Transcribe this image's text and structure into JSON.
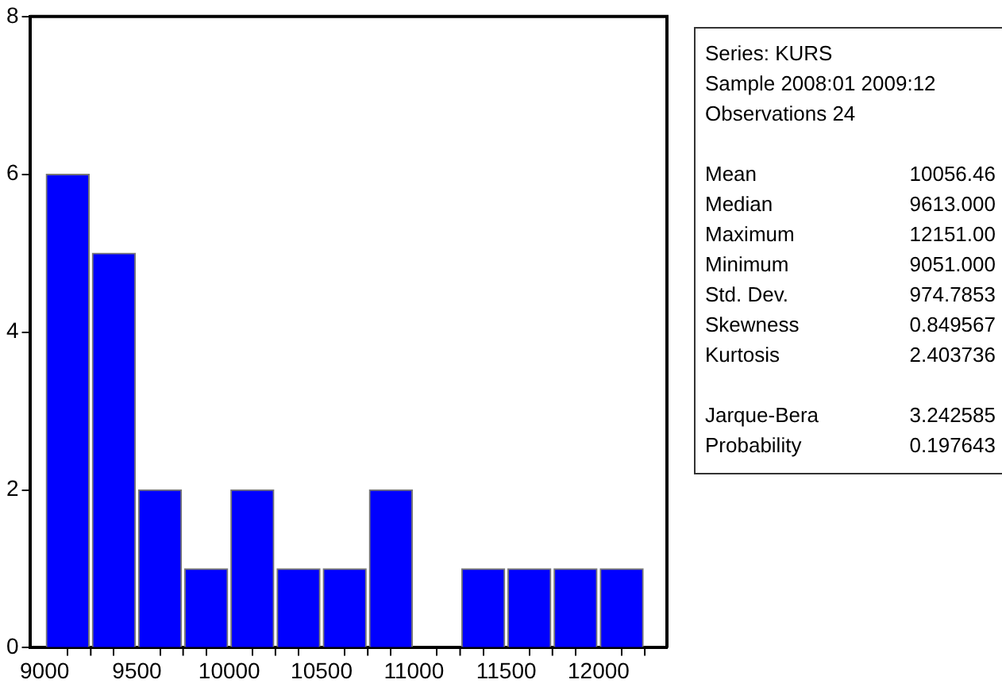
{
  "chart_data": {
    "type": "histogram",
    "bins": [
      9000,
      9250,
      9500,
      9750,
      10000,
      10250,
      10500,
      10750,
      11000,
      11250,
      11500,
      11750,
      12000,
      12250
    ],
    "values": [
      6,
      5,
      2,
      1,
      2,
      1,
      1,
      2,
      0,
      1,
      1,
      1,
      1
    ],
    "color": "#0000ff",
    "xlim": [
      8920,
      12370
    ],
    "xticks": [
      9000,
      {
        "value": 9250,
        "label": null
      },
      9500,
      {
        "value": 9750,
        "label": null
      },
      10000,
      {
        "value": 10250,
        "label": null
      },
      10500,
      {
        "value": 10750,
        "label": null
      },
      11000,
      {
        "value": 11250,
        "label": null
      },
      11500,
      {
        "value": 11750,
        "label": null
      },
      12000,
      {
        "value": 12250,
        "label": null
      }
    ],
    "ylim": [
      0,
      8
    ],
    "yticks": [
      0,
      2,
      4,
      6,
      8
    ],
    "grid": false,
    "legend": false,
    "annotations": [
      "Series: KURS",
      "Sample 2008:01 2009:12",
      "Observations 24",
      "Mean 10056.46",
      "Median 9613.000",
      "Maximum 12151.00",
      "Minimum 9051.000",
      "Std. Dev. 974.7853",
      "Skewness 0.849567",
      "Kurtosis 2.403736",
      "Jarque-Bera 3.242585",
      "Probability 0.197643"
    ]
  }
}
